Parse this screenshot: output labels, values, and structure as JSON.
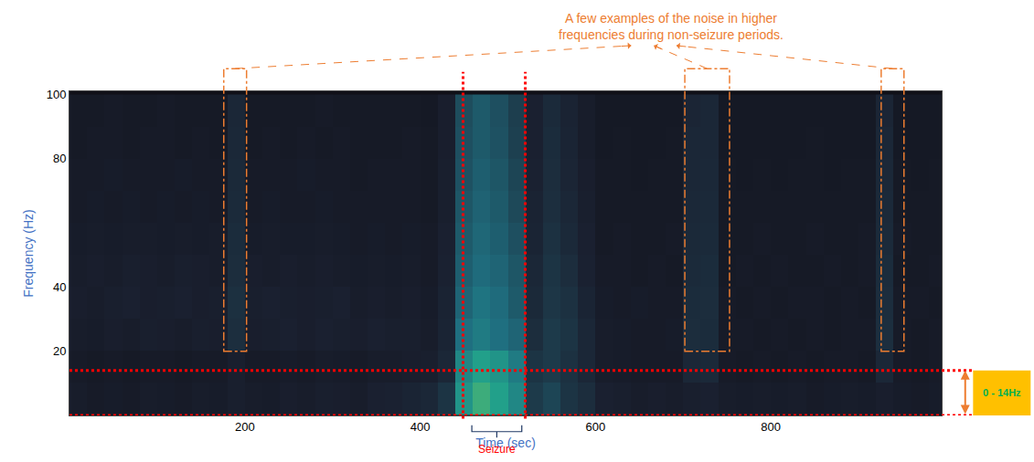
{
  "chart_data": {
    "type": "heatmap",
    "x_label": "Time (sec)",
    "y_label": "Frequency (Hz)",
    "xlim": [
      0,
      995
    ],
    "xticks": [
      200,
      400,
      600,
      800
    ],
    "ylim": [
      0,
      101
    ],
    "yticks": [
      20,
      40,
      80,
      100
    ],
    "zlim": [
      0,
      1
    ],
    "x": [
      10,
      30,
      50,
      70,
      90,
      110,
      130,
      150,
      170,
      190,
      210,
      230,
      250,
      270,
      290,
      310,
      330,
      350,
      370,
      390,
      410,
      430,
      450,
      470,
      490,
      510,
      530,
      550,
      570,
      590,
      610,
      630,
      650,
      670,
      690,
      710,
      730,
      750,
      770,
      790,
      810,
      830,
      850,
      870,
      890,
      910,
      930,
      950,
      970,
      990
    ],
    "y": [
      5,
      15,
      25,
      35,
      45,
      55,
      65,
      75,
      85,
      95
    ],
    "cells": [
      [
        0.12,
        0.1,
        0.11,
        0.1,
        0.12,
        0.11,
        0.1,
        0.12,
        0.11,
        0.14,
        0.12,
        0.11,
        0.13,
        0.12,
        0.14,
        0.13,
        0.12,
        0.15,
        0.16,
        0.18,
        0.2,
        0.3,
        0.75,
        0.85,
        0.8,
        0.7,
        0.35,
        0.4,
        0.3,
        0.25,
        0.15,
        0.14,
        0.12,
        0.13,
        0.12,
        0.14,
        0.15,
        0.12,
        0.11,
        0.12,
        0.11,
        0.12,
        0.1,
        0.11,
        0.12,
        0.11,
        0.13,
        0.11,
        0.1,
        0.11
      ],
      [
        0.1,
        0.09,
        0.1,
        0.09,
        0.1,
        0.1,
        0.09,
        0.1,
        0.1,
        0.14,
        0.1,
        0.1,
        0.11,
        0.1,
        0.12,
        0.11,
        0.1,
        0.12,
        0.12,
        0.13,
        0.14,
        0.2,
        0.7,
        0.8,
        0.75,
        0.65,
        0.3,
        0.35,
        0.28,
        0.2,
        0.12,
        0.11,
        0.1,
        0.1,
        0.1,
        0.2,
        0.22,
        0.1,
        0.09,
        0.1,
        0.09,
        0.1,
        0.09,
        0.1,
        0.1,
        0.09,
        0.2,
        0.1,
        0.09,
        0.1
      ],
      [
        0.12,
        0.11,
        0.13,
        0.12,
        0.14,
        0.13,
        0.12,
        0.14,
        0.13,
        0.26,
        0.13,
        0.14,
        0.15,
        0.13,
        0.15,
        0.14,
        0.13,
        0.15,
        0.14,
        0.14,
        0.12,
        0.18,
        0.6,
        0.65,
        0.6,
        0.55,
        0.25,
        0.35,
        0.3,
        0.2,
        0.12,
        0.11,
        0.1,
        0.1,
        0.11,
        0.25,
        0.24,
        0.1,
        0.1,
        0.09,
        0.1,
        0.09,
        0.1,
        0.09,
        0.1,
        0.1,
        0.26,
        0.1,
        0.09,
        0.1
      ],
      [
        0.13,
        0.12,
        0.14,
        0.15,
        0.13,
        0.14,
        0.15,
        0.13,
        0.14,
        0.27,
        0.14,
        0.15,
        0.14,
        0.13,
        0.14,
        0.15,
        0.12,
        0.13,
        0.12,
        0.13,
        0.11,
        0.17,
        0.55,
        0.62,
        0.58,
        0.5,
        0.22,
        0.32,
        0.28,
        0.18,
        0.11,
        0.1,
        0.11,
        0.1,
        0.1,
        0.24,
        0.25,
        0.1,
        0.09,
        0.1,
        0.09,
        0.1,
        0.1,
        0.09,
        0.1,
        0.09,
        0.25,
        0.1,
        0.1,
        0.09
      ],
      [
        0.12,
        0.13,
        0.12,
        0.14,
        0.13,
        0.12,
        0.14,
        0.13,
        0.12,
        0.25,
        0.13,
        0.12,
        0.13,
        0.12,
        0.13,
        0.12,
        0.11,
        0.12,
        0.11,
        0.12,
        0.1,
        0.16,
        0.52,
        0.58,
        0.55,
        0.48,
        0.2,
        0.3,
        0.25,
        0.16,
        0.1,
        0.1,
        0.09,
        0.1,
        0.09,
        0.23,
        0.24,
        0.09,
        0.1,
        0.09,
        0.1,
        0.09,
        0.09,
        0.1,
        0.09,
        0.1,
        0.24,
        0.09,
        0.09,
        0.1
      ],
      [
        0.11,
        0.12,
        0.11,
        0.12,
        0.12,
        0.11,
        0.12,
        0.11,
        0.12,
        0.24,
        0.11,
        0.12,
        0.11,
        0.11,
        0.12,
        0.11,
        0.1,
        0.11,
        0.1,
        0.11,
        0.1,
        0.15,
        0.5,
        0.56,
        0.52,
        0.45,
        0.18,
        0.28,
        0.22,
        0.15,
        0.09,
        0.1,
        0.09,
        0.09,
        0.1,
        0.22,
        0.23,
        0.09,
        0.09,
        0.1,
        0.09,
        0.09,
        0.1,
        0.09,
        0.09,
        0.1,
        0.23,
        0.1,
        0.09,
        0.09
      ],
      [
        0.1,
        0.11,
        0.1,
        0.11,
        0.1,
        0.11,
        0.1,
        0.11,
        0.1,
        0.23,
        0.1,
        0.11,
        0.1,
        0.1,
        0.11,
        0.1,
        0.1,
        0.1,
        0.1,
        0.1,
        0.09,
        0.14,
        0.48,
        0.54,
        0.5,
        0.42,
        0.17,
        0.26,
        0.2,
        0.14,
        0.09,
        0.09,
        0.09,
        0.09,
        0.09,
        0.21,
        0.22,
        0.09,
        0.09,
        0.09,
        0.09,
        0.09,
        0.09,
        0.09,
        0.09,
        0.09,
        0.22,
        0.09,
        0.09,
        0.09
      ],
      [
        0.1,
        0.1,
        0.11,
        0.1,
        0.1,
        0.1,
        0.11,
        0.1,
        0.1,
        0.22,
        0.1,
        0.1,
        0.1,
        0.11,
        0.1,
        0.1,
        0.09,
        0.1,
        0.1,
        0.1,
        0.09,
        0.14,
        0.46,
        0.52,
        0.48,
        0.4,
        0.16,
        0.25,
        0.19,
        0.13,
        0.09,
        0.09,
        0.08,
        0.09,
        0.09,
        0.2,
        0.21,
        0.09,
        0.08,
        0.09,
        0.08,
        0.09,
        0.09,
        0.08,
        0.09,
        0.09,
        0.21,
        0.09,
        0.08,
        0.09
      ],
      [
        0.09,
        0.1,
        0.1,
        0.09,
        0.1,
        0.1,
        0.09,
        0.1,
        0.09,
        0.21,
        0.09,
        0.1,
        0.09,
        0.1,
        0.09,
        0.1,
        0.09,
        0.09,
        0.09,
        0.1,
        0.09,
        0.13,
        0.45,
        0.5,
        0.46,
        0.38,
        0.15,
        0.24,
        0.18,
        0.12,
        0.08,
        0.09,
        0.08,
        0.08,
        0.09,
        0.2,
        0.2,
        0.08,
        0.08,
        0.08,
        0.08,
        0.08,
        0.09,
        0.08,
        0.08,
        0.08,
        0.2,
        0.08,
        0.08,
        0.08
      ],
      [
        0.09,
        0.09,
        0.1,
        0.09,
        0.09,
        0.1,
        0.09,
        0.09,
        0.09,
        0.2,
        0.09,
        0.09,
        0.09,
        0.09,
        0.1,
        0.09,
        0.09,
        0.09,
        0.09,
        0.09,
        0.08,
        0.13,
        0.44,
        0.5,
        0.45,
        0.37,
        0.15,
        0.23,
        0.17,
        0.12,
        0.08,
        0.08,
        0.08,
        0.08,
        0.08,
        0.19,
        0.2,
        0.08,
        0.08,
        0.08,
        0.08,
        0.08,
        0.08,
        0.08,
        0.08,
        0.08,
        0.19,
        0.08,
        0.08,
        0.08
      ]
    ],
    "annotations": {
      "noise_note": [
        "A few examples of the noise in higher",
        "frequencies during non-seizure periods."
      ],
      "noise_examples": [
        [
          176,
          202
        ],
        [
          702,
          753
        ],
        [
          926,
          952
        ]
      ],
      "noise_freq_min": 20,
      "seizure": {
        "text": "Seizure",
        "start": 449,
        "end": 520,
        "brace": [
          459,
          516
        ]
      },
      "band": {
        "text": "0 - 14Hz",
        "low": 0,
        "high": 14
      }
    }
  }
}
